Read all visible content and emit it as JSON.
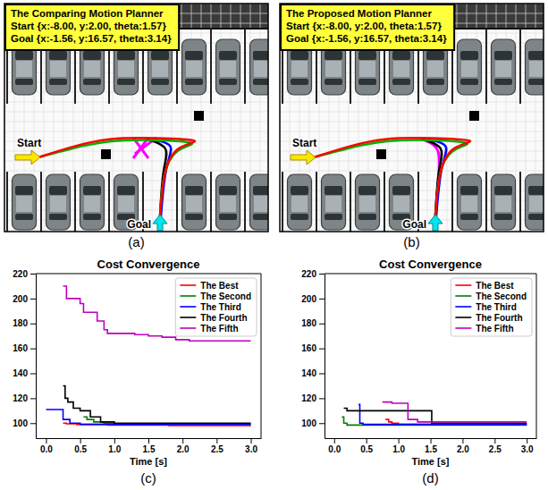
{
  "scenes": [
    {
      "panel_label": "(a)",
      "box_lines": [
        "The Comparing Motion Planner",
        "Start {x:-8.00, y:2.00, theta:1.57}",
        "Goal {x:-1.56, y:16.57, theta:3.14}"
      ],
      "start_label": "Start",
      "goal_label": "Goal"
    },
    {
      "panel_label": "(b)",
      "box_lines": [
        "The Proposed Motion Planner",
        "Start {x:-8.00, y:2.00, theta:1.57}",
        "Goal {x:-1.56, y:16.57, theta:3.14}"
      ],
      "start_label": "Start",
      "goal_label": "Goal"
    }
  ],
  "chart_data": [
    {
      "type": "line",
      "title": "Cost Convergence",
      "x_label": "Time [s]",
      "panel_label": "(c)",
      "xlim": [
        -0.15,
        3.15
      ],
      "xticks": [
        {
          "value": 0,
          "label": "0.0"
        },
        {
          "value": 0.5,
          "label": "0.5"
        },
        {
          "value": 1,
          "label": "1.0"
        },
        {
          "value": 1.5,
          "label": "1.5"
        },
        {
          "value": 2,
          "label": "2.0"
        },
        {
          "value": 2.5,
          "label": "2.5"
        },
        {
          "value": 3,
          "label": "3.0"
        }
      ],
      "ylim": [
        88,
        220
      ],
      "yticks": [
        100,
        120,
        140,
        160,
        180,
        200,
        220
      ],
      "grid": false,
      "legend": "upper right",
      "line_style": "step",
      "series": [
        {
          "name": "The Best",
          "color": "#ff0000",
          "x": [
            0.25,
            0.3,
            0.45,
            0.9,
            1.8,
            3.0
          ],
          "values": [
            100,
            99.5,
            99,
            98.5,
            98,
            98
          ]
        },
        {
          "name": "The Second",
          "color": "#008000",
          "x": [
            0.55,
            0.6,
            0.7,
            0.85,
            1.0,
            3.0
          ],
          "values": [
            105,
            103,
            101,
            100,
            99,
            99
          ]
        },
        {
          "name": "The Third",
          "color": "#0000ff",
          "x": [
            0.0,
            0.2,
            0.25,
            0.35,
            0.5,
            3.0
          ],
          "values": [
            111,
            111,
            103,
            100,
            99,
            99
          ]
        },
        {
          "name": "The Fourth",
          "color": "#000000",
          "x": [
            0.25,
            0.28,
            0.32,
            0.4,
            0.5,
            0.65,
            0.8,
            1.0,
            3.0
          ],
          "values": [
            130,
            120,
            117,
            112,
            110,
            105,
            101,
            100,
            100
          ]
        },
        {
          "name": "The Fifth",
          "color": "#bf00bf",
          "x": [
            0.25,
            0.3,
            0.5,
            0.55,
            0.75,
            0.85,
            0.9,
            1.3,
            1.5,
            1.7,
            1.9,
            2.1,
            3.0
          ],
          "values": [
            210,
            200,
            196,
            189,
            182,
            175,
            172,
            171,
            170,
            169,
            167,
            166,
            166
          ]
        }
      ]
    },
    {
      "type": "line",
      "title": "Cost Convergence",
      "x_label": "Time [s]",
      "panel_label": "(d)",
      "xlim": [
        -0.15,
        3.15
      ],
      "xticks": [
        {
          "value": 0,
          "label": "0.0"
        },
        {
          "value": 0.5,
          "label": "0.5"
        },
        {
          "value": 1,
          "label": "1.0"
        },
        {
          "value": 1.5,
          "label": "1.5"
        },
        {
          "value": 2,
          "label": "2.0"
        },
        {
          "value": 2.5,
          "label": "2.5"
        },
        {
          "value": 3,
          "label": "3.0"
        }
      ],
      "ylim": [
        88,
        220
      ],
      "yticks": [
        100,
        120,
        140,
        160,
        180,
        200,
        220
      ],
      "grid": false,
      "legend": "upper right",
      "line_style": "step",
      "series": [
        {
          "name": "The Best",
          "color": "#ff0000",
          "x": [
            0.8,
            0.85,
            0.9,
            1.0,
            3.0
          ],
          "values": [
            103,
            101,
            100,
            99,
            99
          ]
        },
        {
          "name": "The Second",
          "color": "#008000",
          "x": [
            0.12,
            0.15,
            0.2,
            3.0
          ],
          "values": [
            105,
            100,
            98.5,
            98.5
          ]
        },
        {
          "name": "The Third",
          "color": "#0000ff",
          "x": [
            0.38,
            0.4,
            0.45,
            3.0
          ],
          "values": [
            115,
            100,
            99,
            99
          ]
        },
        {
          "name": "The Fourth",
          "color": "#000000",
          "x": [
            0.15,
            0.2,
            1.5,
            1.52,
            3.0
          ],
          "values": [
            112,
            110,
            110,
            100,
            100
          ]
        },
        {
          "name": "The Fifth",
          "color": "#bf00bf",
          "x": [
            0.75,
            0.9,
            1.1,
            1.15,
            1.3,
            3.0
          ],
          "values": [
            117,
            116,
            116,
            103,
            101,
            101
          ]
        }
      ]
    }
  ]
}
